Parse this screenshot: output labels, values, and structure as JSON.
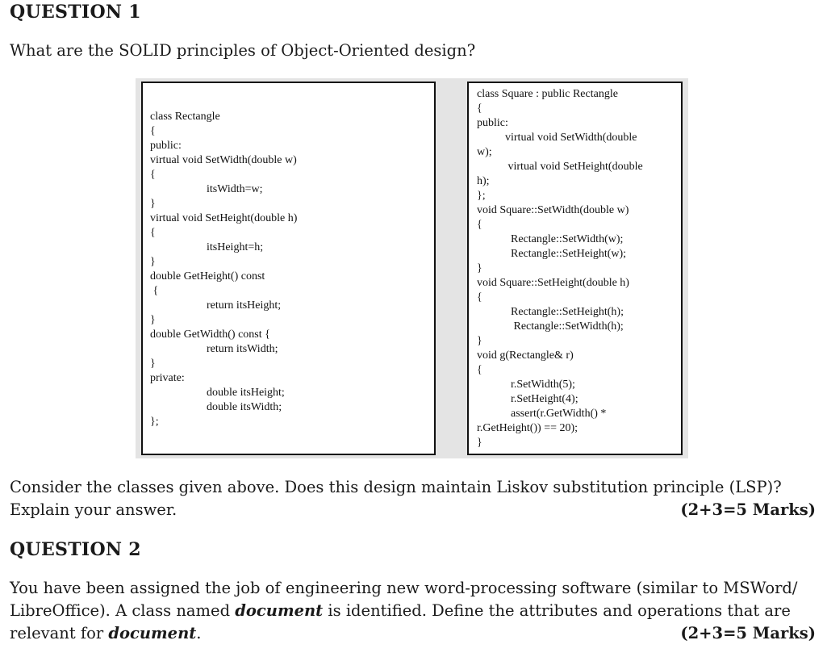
{
  "q1": {
    "heading": "QUESTION 1",
    "prompt": "What are the SOLID principles of Object-Oriented design?",
    "rectangle_code": [
      "class Rectangle",
      "{",
      "public:",
      "virtual void SetWidth(double w)",
      "{",
      "                    itsWidth=w;",
      "}",
      "virtual void SetHeight(double h)",
      "{",
      "                    itsHeight=h;",
      "}",
      "double GetHeight() const",
      " {",
      "                    return itsHeight;",
      "}",
      "double GetWidth() const {",
      "                    return itsWidth;",
      "}",
      "private:",
      "                    double itsHeight;",
      "                    double itsWidth;",
      "};"
    ],
    "square_code": [
      "class Square : public Rectangle",
      "{",
      "public:",
      "          virtual void SetWidth(double",
      "w);",
      "           virtual void SetHeight(double",
      "h);",
      "};",
      "void Square::SetWidth(double w)",
      "{",
      "            Rectangle::SetWidth(w);",
      "            Rectangle::SetHeight(w);",
      "}",
      "void Square::SetHeight(double h)",
      "{",
      "            Rectangle::SetHeight(h);",
      "             Rectangle::SetWidth(h);",
      "}",
      "void g(Rectangle& r)",
      "{",
      "            r.SetWidth(5);",
      "            r.SetHeight(4);",
      "            assert(r.GetWidth() *",
      "r.GetHeight()) == 20);",
      "}"
    ],
    "consider_line1": "Consider the classes given above. Does this design maintain Liskov substitution principle (LSP)?",
    "consider_line2": "Explain your answer.",
    "marks": "(2+3=5 Marks)"
  },
  "q2": {
    "heading": "QUESTION 2",
    "line1": "You have been assigned the job of engineering new word-processing software (similar to MSWord/",
    "line2_pre": "LibreOffice). A class named ",
    "line2_bold": "document",
    "line2_post": " is identified. Define the attributes and operations that are",
    "line3_pre": "relevant for ",
    "line3_bold": "document",
    "line3_post": ".",
    "marks": "(2+3=5 Marks)"
  },
  "colors": {
    "text": "#1a1a1a",
    "panel_background": "#e4e4e4",
    "code_box_border": "#111111"
  }
}
